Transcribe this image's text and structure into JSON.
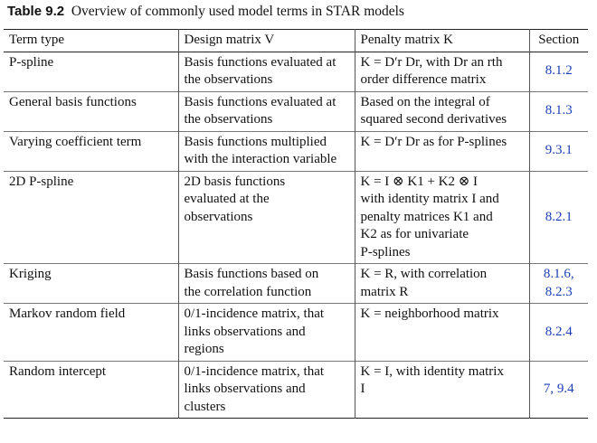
{
  "caption": {
    "label": "Table 9.2",
    "text": "Overview of commonly used model terms in STAR models"
  },
  "headers": {
    "term_type": "Term type",
    "design_matrix": "Design matrix V",
    "penalty_matrix": "Penalty matrix K",
    "section": "Section"
  },
  "rows": [
    {
      "term": "P-spline",
      "design": [
        "Basis functions evaluated at",
        "the observations"
      ],
      "penalty": [
        "K = D′r Dr, with Dr an rth",
        "order difference matrix"
      ],
      "section": [
        "8.1.2"
      ]
    },
    {
      "term": "General basis functions",
      "design": [
        "Basis functions evaluated at",
        "the observations"
      ],
      "penalty": [
        "Based on the integral of",
        "squared second derivatives"
      ],
      "section": [
        "8.1.3"
      ]
    },
    {
      "term": "Varying coefficient term",
      "design": [
        "Basis functions multiplied",
        "with the interaction variable"
      ],
      "penalty": [
        "K = D′r Dr as for P-splines"
      ],
      "section": [
        "9.3.1"
      ]
    },
    {
      "term": "2D P-spline",
      "design": [
        "2D basis functions",
        "evaluated at the",
        "observations"
      ],
      "penalty": [
        "K = I ⊗ K1 + K2 ⊗ I",
        "with identity matrix I and",
        "penalty matrices K1 and",
        "K2 as for univariate",
        "P-splines"
      ],
      "section": [
        "8.2.1"
      ]
    },
    {
      "term": "Kriging",
      "design": [
        "Basis functions based on",
        "the correlation function"
      ],
      "penalty": [
        "K = R, with correlation",
        "matrix R"
      ],
      "section": [
        "8.1.6,",
        "8.2.3"
      ]
    },
    {
      "term": "Markov random field",
      "design": [
        "0/1-incidence matrix, that",
        "links observations and",
        "regions"
      ],
      "penalty": [
        "K = neighborhood matrix"
      ],
      "section": [
        "8.2.4"
      ]
    },
    {
      "term": "Random intercept",
      "design": [
        "0/1-incidence matrix, that",
        "links observations and",
        "clusters"
      ],
      "penalty": [
        "K = I, with identity matrix",
        "I"
      ],
      "section": [
        "7, 9.4"
      ]
    }
  ],
  "colors": {
    "link": "#1a3fb5",
    "rule": "#222222"
  }
}
